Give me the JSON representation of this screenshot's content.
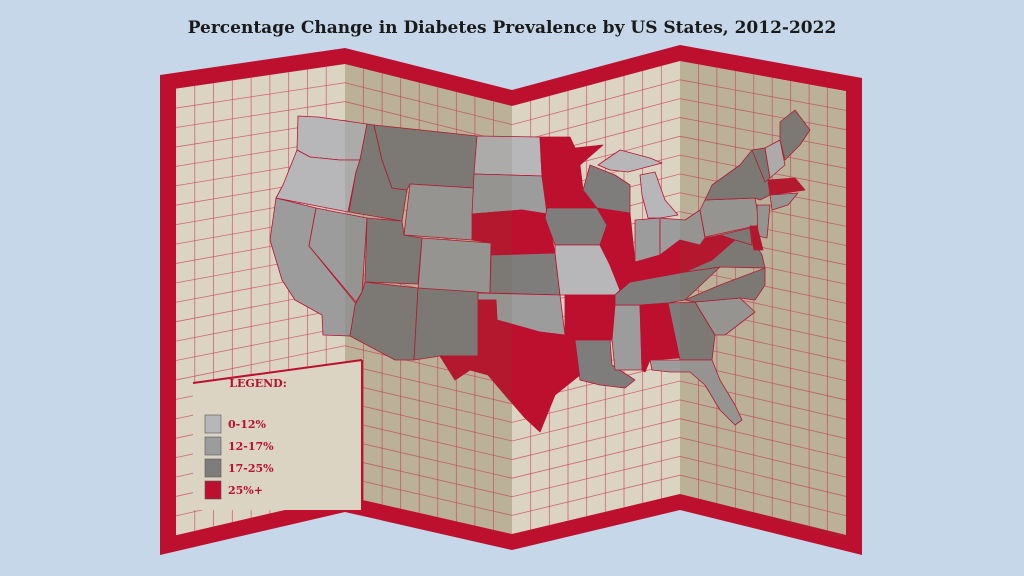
{
  "title": "Percentage Change in Diabetes Prevalence by US States, 2012-2022",
  "colors": {
    "background": "#c5d7e9",
    "map_border": "#bd0f2e",
    "paper": "#dbd4c3",
    "paper_shaded": "#c6bca6",
    "grid": "#d04a5e"
  },
  "legend": {
    "title": "LEGEND:",
    "items": [
      {
        "label": "0-12%",
        "color": "#b7b7b9"
      },
      {
        "label": "12-17%",
        "color": "#9c9c9d"
      },
      {
        "label": "17-25%",
        "color": "#7f7d7b"
      },
      {
        "label": "25%+",
        "color": "#bd0f2e"
      }
    ]
  },
  "states": {
    "WA": 0,
    "OR": 0,
    "ND": 0,
    "MI": 0,
    "MO": 0,
    "NH": 0,
    "CA": 1,
    "NV": 1,
    "WY": 1,
    "CO": 1,
    "SD": 1,
    "OK": 1,
    "IN": 1,
    "OH": 1,
    "PA": 1,
    "SC": 1,
    "FL": 1,
    "MS": 1,
    "NJ": 1,
    "CT": 1,
    "ID": 2,
    "MT": 2,
    "UT": 2,
    "AZ": 2,
    "NM": 2,
    "KS": 2,
    "IA": 2,
    "WI": 2,
    "TN": 2,
    "VA": 2,
    "NC": 2,
    "GA": 2,
    "LA": 2,
    "NY": 2,
    "ME": 2,
    "VT": 2,
    "MD": 2,
    "MN": 3,
    "NE": 3,
    "IL": 3,
    "KY": 3,
    "WV": 3,
    "TX": 3,
    "AR": 3,
    "AL": 3,
    "MA": 3,
    "DE": 3
  }
}
